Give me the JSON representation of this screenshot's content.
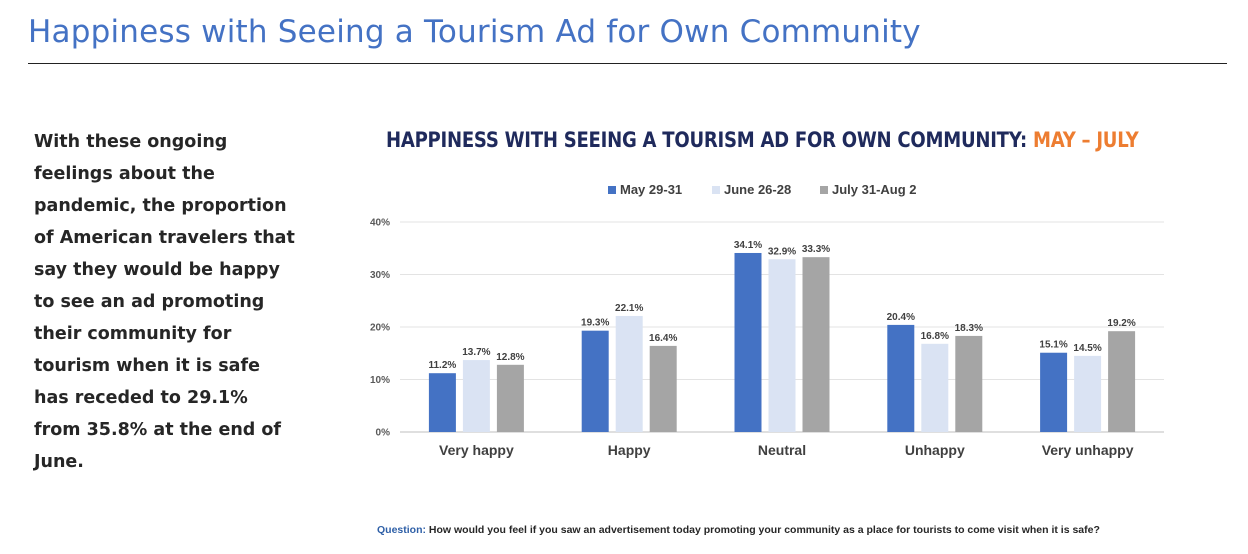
{
  "header": {
    "title": "Happiness with Seeing a Tourism Ad for Own Community"
  },
  "body_text": "With these ongoing feelings about the pandemic, the proportion of American travelers that say they would be happy to see an ad promoting their community for tourism when it is safe has receded to 29.1% from 35.8% at the end of June.",
  "footer": {
    "question_label": "Question:",
    "question_text": "How would you feel if you saw an advertisement today promoting your community as a place for tourists to come visit when it is safe?"
  },
  "chart_data": {
    "type": "bar",
    "title": "HAPPINESS WITH SEEING A TOURISM AD FOR OWN COMMUNITY:",
    "title_highlight": "MAY – JULY",
    "categories": [
      "Very happy",
      "Happy",
      "Neutral",
      "Unhappy",
      "Very unhappy"
    ],
    "series": [
      {
        "name": "May 29-31",
        "color": "#4472c4",
        "values": [
          11.2,
          19.3,
          34.1,
          20.4,
          15.1
        ]
      },
      {
        "name": "June 26-28",
        "color": "#dae3f3",
        "values": [
          13.7,
          22.1,
          32.9,
          16.8,
          14.5
        ]
      },
      {
        "name": "July 31-Aug 2",
        "color": "#a5a5a5",
        "values": [
          12.8,
          16.4,
          33.3,
          18.3,
          19.2
        ]
      }
    ],
    "yticks": [
      0,
      10,
      20,
      30,
      40
    ],
    "ylim": [
      0,
      40
    ],
    "value_suffix": "%",
    "legend_position": "top",
    "grid": true,
    "xlabel": "",
    "ylabel": ""
  }
}
